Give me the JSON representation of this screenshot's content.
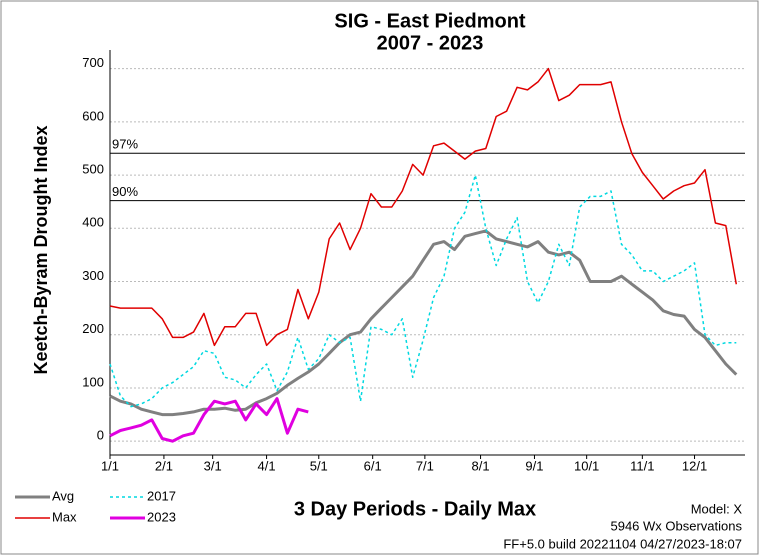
{
  "chart_data": {
    "type": "line",
    "title": "SIG - East Piedmont",
    "subtitle": "2007 - 2023",
    "y_label": "Keetch-Byram Drought Index",
    "x_label": "3 Day Periods - Daily Max",
    "annotations": [
      "Model: X",
      "5946 Wx Observations",
      "FF+5.0 build 20221104 04/27/2023-18:07"
    ],
    "x": [
      0,
      2,
      4,
      6,
      8,
      10,
      12,
      14,
      16,
      18,
      20,
      22,
      24,
      26,
      28,
      30,
      32,
      34,
      36,
      38,
      40,
      42,
      44,
      46,
      48,
      50,
      52,
      54,
      56,
      58,
      60,
      62,
      64,
      66,
      68,
      70,
      72,
      74,
      76,
      78,
      80,
      82,
      84,
      86,
      88,
      90,
      92,
      94,
      96,
      98,
      100,
      102,
      104,
      106,
      108,
      110,
      112,
      114,
      116,
      118,
      120
    ],
    "xlim": [
      0,
      121.67
    ],
    "xticks": [
      {
        "value": 0,
        "label": "1/1"
      },
      {
        "value": 10.33,
        "label": "2/1"
      },
      {
        "value": 19.67,
        "label": "3/1"
      },
      {
        "value": 30,
        "label": "4/1"
      },
      {
        "value": 40,
        "label": "5/1"
      },
      {
        "value": 50.33,
        "label": "6/1"
      },
      {
        "value": 60.33,
        "label": "7/1"
      },
      {
        "value": 71,
        "label": "8/1"
      },
      {
        "value": 81.33,
        "label": "9/1"
      },
      {
        "value": 91.33,
        "label": "10/1"
      },
      {
        "value": 102,
        "label": "11/1"
      },
      {
        "value": 112,
        "label": "12/1"
      }
    ],
    "ylim": [
      -26,
      735
    ],
    "yticks": [
      0,
      100,
      200,
      300,
      400,
      500,
      600,
      700
    ],
    "grid": true,
    "reference_lines": [
      {
        "label": "97%",
        "value": 541
      },
      {
        "label": "90%",
        "value": 452
      }
    ],
    "series": [
      {
        "name": "Avg",
        "color": "#808080",
        "width": 3,
        "style": "solid",
        "values": [
          85,
          75,
          70,
          60,
          55,
          50,
          50,
          52,
          55,
          60,
          60,
          62,
          58,
          60,
          72,
          80,
          90,
          105,
          118,
          130,
          145,
          165,
          185,
          200,
          205,
          230,
          250,
          270,
          290,
          310,
          340,
          370,
          375,
          360,
          385,
          390,
          395,
          380,
          375,
          370,
          365,
          375,
          355,
          350,
          355,
          340,
          300,
          300,
          300,
          310,
          295,
          280,
          265,
          245,
          238,
          235,
          210,
          195,
          170,
          145,
          125
        ]
      },
      {
        "name": "Max",
        "color": "#e00000",
        "width": 1.5,
        "style": "solid",
        "values": [
          254,
          250,
          250,
          250,
          250,
          230,
          195,
          195,
          205,
          240,
          180,
          215,
          215,
          240,
          240,
          180,
          200,
          210,
          285,
          230,
          280,
          380,
          410,
          360,
          400,
          465,
          440,
          440,
          470,
          520,
          500,
          555,
          560,
          545,
          530,
          545,
          550,
          610,
          620,
          665,
          660,
          675,
          700,
          640,
          650,
          670,
          670,
          670,
          675,
          600,
          540,
          505,
          480,
          455,
          470,
          480,
          485,
          510,
          410,
          405,
          295
        ]
      },
      {
        "name": "2017",
        "color": "#00d8e0",
        "width": 1.5,
        "style": "dotted",
        "values": [
          145,
          85,
          65,
          70,
          80,
          100,
          110,
          125,
          140,
          170,
          165,
          120,
          115,
          100,
          125,
          145,
          95,
          130,
          195,
          135,
          155,
          200,
          185,
          195,
          75,
          215,
          210,
          200,
          230,
          120,
          190,
          270,
          310,
          400,
          430,
          500,
          400,
          330,
          380,
          420,
          300,
          260,
          300,
          370,
          330,
          440,
          460,
          460,
          470,
          370,
          350,
          320,
          320,
          300,
          310,
          320,
          335,
          200,
          180,
          185,
          185
        ]
      },
      {
        "name": "2023",
        "color": "#e000e0",
        "width": 3,
        "style": "solid",
        "values": [
          10,
          20,
          25,
          30,
          40,
          5,
          0,
          10,
          15,
          50,
          75,
          70,
          75,
          40,
          70,
          50,
          80,
          15,
          60,
          55,
          null,
          null,
          null,
          null,
          null,
          null,
          null,
          null,
          null,
          null,
          null,
          null,
          null,
          null,
          null,
          null,
          null,
          null,
          null,
          null,
          null,
          null,
          null,
          null,
          null,
          null,
          null,
          null,
          null,
          null,
          null,
          null,
          null,
          null,
          null,
          null,
          null,
          null,
          null,
          null,
          null
        ]
      }
    ]
  }
}
